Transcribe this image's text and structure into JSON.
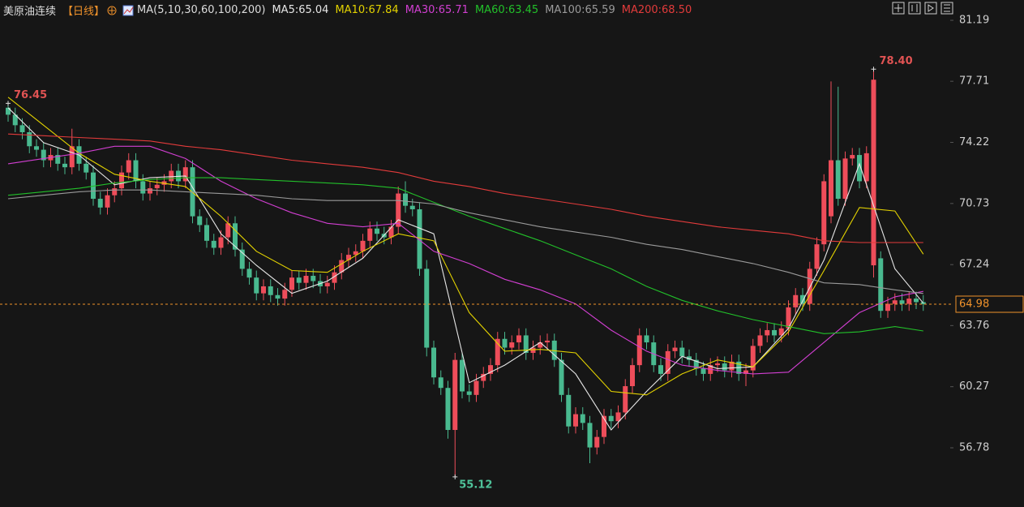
{
  "chart_data": {
    "type": "candlestick",
    "title": "美原油连续",
    "period": "【日线】",
    "indicator": "MA(5,10,30,60,100,200)",
    "up_color": "#ee4d5a",
    "down_color": "#49b98f",
    "ylim": [
      53.4,
      82.35
    ],
    "yticks": [
      56.78,
      60.27,
      63.76,
      67.24,
      70.73,
      74.22,
      77.71,
      81.19
    ],
    "open": [
      76.2,
      75.8,
      75.2,
      74.8,
      74.0,
      73.8,
      73.2,
      73.5,
      73.0,
      72.8,
      74.0,
      73.0,
      72.5,
      71.0,
      70.5,
      71.2,
      71.6,
      72.5,
      73.2,
      72.0,
      71.3,
      71.6,
      71.8,
      72.0,
      72.6,
      72.0,
      72.8,
      70.0,
      69.5,
      68.6,
      68.2,
      68.8,
      69.6,
      68.1,
      67.0,
      66.5,
      65.6,
      66.0,
      65.5,
      65.3,
      65.8,
      66.5,
      66.2,
      66.6,
      66.3,
      66.0,
      66.2,
      66.8,
      67.5,
      67.8,
      68.0,
      68.6,
      69.3,
      69.0,
      68.8,
      69.4,
      71.3,
      70.6,
      70.4,
      67.0,
      62.5,
      60.8,
      60.2,
      57.8,
      61.8,
      60.0,
      59.8,
      60.6,
      61.0,
      61.5,
      63.0,
      62.5,
      62.8,
      63.2,
      62.2,
      62.5,
      62.8,
      62.9,
      61.8,
      59.8,
      58.0,
      58.7,
      58.2,
      56.8,
      57.4,
      58.6,
      58.3,
      58.8,
      60.3,
      61.5,
      63.2,
      62.8,
      61.5,
      61.0,
      62.3,
      62.5,
      62.0,
      61.8,
      61.3,
      61.0,
      61.5,
      61.6,
      61.2,
      61.7,
      61.0,
      61.2,
      62.6,
      63.2,
      63.5,
      63.2,
      63.6,
      64.8,
      65.5,
      65.0,
      67.0,
      68.4,
      70.0,
      73.2,
      71.0,
      73.3,
      73.5,
      72.0,
      67.2,
      67.6,
      64.6,
      65.0,
      65.2,
      65.0,
      65.3,
      65.1
    ],
    "high": [
      76.45,
      76.2,
      75.6,
      75.2,
      74.4,
      74.2,
      73.9,
      73.9,
      73.4,
      75.0,
      74.4,
      73.4,
      72.9,
      71.4,
      71.6,
      72.0,
      72.9,
      73.6,
      73.6,
      72.4,
      72.0,
      72.2,
      72.4,
      73.0,
      73.0,
      73.2,
      73.2,
      70.4,
      69.9,
      69.0,
      69.2,
      70.0,
      70.0,
      68.5,
      67.4,
      66.9,
      66.4,
      66.4,
      65.9,
      66.2,
      66.9,
      66.9,
      67.0,
      67.0,
      66.7,
      66.6,
      67.2,
      67.9,
      68.2,
      68.4,
      69.0,
      69.7,
      69.7,
      69.4,
      69.8,
      71.7,
      72.0,
      71.0,
      70.8,
      67.5,
      62.9,
      61.2,
      60.6,
      62.2,
      62.2,
      60.4,
      61.0,
      61.4,
      61.9,
      63.4,
      63.4,
      63.2,
      63.6,
      63.6,
      62.9,
      63.2,
      63.3,
      63.3,
      62.2,
      60.2,
      59.1,
      59.1,
      58.6,
      57.8,
      59.0,
      59.0,
      59.2,
      60.7,
      61.9,
      63.6,
      63.6,
      63.2,
      61.9,
      62.7,
      62.9,
      62.9,
      62.4,
      62.2,
      61.7,
      61.9,
      62.0,
      62.0,
      62.1,
      62.1,
      61.6,
      63.0,
      63.6,
      63.9,
      63.9,
      64.0,
      65.2,
      65.9,
      65.9,
      67.4,
      68.8,
      72.4,
      77.7,
      77.4,
      73.7,
      73.9,
      73.9,
      74.0,
      78.4,
      68.0,
      65.4,
      65.6,
      65.6,
      65.7,
      65.7,
      65.5
    ],
    "low": [
      75.4,
      74.8,
      74.4,
      73.6,
      73.4,
      72.8,
      72.8,
      72.6,
      72.4,
      72.4,
      72.6,
      72.1,
      70.6,
      70.1,
      70.1,
      70.8,
      71.2,
      72.1,
      71.6,
      70.9,
      70.9,
      71.2,
      71.4,
      71.6,
      71.6,
      71.6,
      69.6,
      69.1,
      68.2,
      67.8,
      67.8,
      68.4,
      67.7,
      66.6,
      66.1,
      65.2,
      65.2,
      65.1,
      64.9,
      64.9,
      65.4,
      65.8,
      65.8,
      65.9,
      65.6,
      65.6,
      65.8,
      66.4,
      67.1,
      67.4,
      67.6,
      68.2,
      68.6,
      68.4,
      68.4,
      69.0,
      70.2,
      70.0,
      66.6,
      62.0,
      60.4,
      59.8,
      57.3,
      55.12,
      59.6,
      59.4,
      59.4,
      60.2,
      60.6,
      61.1,
      62.1,
      62.1,
      62.4,
      61.8,
      61.8,
      62.1,
      62.4,
      61.4,
      59.4,
      57.6,
      57.6,
      57.8,
      55.9,
      56.4,
      57.0,
      57.9,
      57.9,
      58.4,
      59.9,
      61.1,
      62.4,
      61.1,
      60.6,
      60.6,
      61.9,
      61.6,
      61.4,
      60.9,
      60.6,
      60.6,
      61.1,
      60.8,
      60.8,
      60.6,
      60.3,
      60.8,
      62.2,
      62.8,
      62.8,
      62.8,
      63.2,
      64.4,
      64.6,
      64.6,
      66.6,
      68.0,
      69.6,
      70.6,
      70.6,
      72.9,
      71.6,
      71.6,
      66.5,
      64.2,
      64.2,
      64.6,
      64.6,
      64.6,
      64.7,
      64.6
    ],
    "close": [
      75.8,
      75.2,
      74.8,
      74.0,
      73.8,
      73.2,
      73.5,
      73.0,
      72.8,
      74.0,
      73.0,
      72.5,
      71.0,
      70.5,
      71.2,
      71.6,
      72.5,
      73.2,
      72.0,
      71.3,
      71.6,
      71.8,
      72.0,
      72.6,
      72.0,
      72.8,
      70.0,
      69.5,
      68.6,
      68.2,
      68.8,
      69.6,
      68.1,
      67.0,
      66.5,
      65.6,
      66.0,
      65.5,
      65.3,
      65.8,
      66.5,
      66.2,
      66.6,
      66.3,
      66.0,
      66.2,
      66.8,
      67.5,
      67.8,
      68.0,
      68.6,
      69.3,
      69.0,
      68.8,
      69.4,
      71.3,
      70.6,
      70.4,
      67.0,
      62.5,
      60.8,
      60.2,
      57.8,
      61.8,
      60.0,
      59.8,
      60.6,
      61.0,
      61.5,
      63.0,
      62.5,
      62.8,
      63.2,
      62.2,
      62.5,
      62.8,
      62.9,
      61.8,
      59.8,
      58.0,
      58.7,
      58.2,
      56.8,
      57.4,
      58.6,
      58.3,
      58.8,
      60.3,
      61.5,
      63.2,
      62.8,
      61.5,
      61.0,
      62.3,
      62.5,
      62.0,
      61.8,
      61.3,
      61.0,
      61.5,
      61.6,
      61.2,
      61.7,
      61.0,
      61.2,
      62.6,
      63.2,
      63.5,
      63.2,
      63.6,
      64.8,
      65.5,
      65.0,
      67.0,
      68.4,
      72.0,
      73.2,
      71.0,
      73.3,
      73.5,
      72.0,
      73.6,
      77.8,
      64.6,
      65.0,
      65.2,
      65.0,
      65.3,
      65.1,
      64.98
    ],
    "ma_x": [
      0,
      5,
      10,
      15,
      20,
      25,
      30,
      35,
      40,
      45,
      50,
      55,
      60,
      65,
      70,
      75,
      80,
      85,
      90,
      95,
      100,
      105,
      110,
      115,
      120,
      125,
      129
    ],
    "series": [
      {
        "name": "MA5:65.04",
        "color": "#e6e6e6",
        "values": [
          76.2,
          74.2,
          73.5,
          71.8,
          72.2,
          72.3,
          69.0,
          67.2,
          65.6,
          66.3,
          67.6,
          69.8,
          69.0,
          60.5,
          61.5,
          62.8,
          61.0,
          57.8,
          60.0,
          62.0,
          61.3,
          61.4,
          63.6,
          67.5,
          73.0,
          67.0,
          65.04
        ]
      },
      {
        "name": "MA10:67.84",
        "color": "#e3d200",
        "values": [
          76.8,
          75.2,
          73.6,
          72.4,
          72.0,
          71.7,
          70.0,
          68.0,
          66.9,
          66.8,
          68.0,
          69.0,
          68.6,
          64.5,
          62.3,
          62.4,
          62.2,
          60.0,
          59.8,
          61.0,
          61.8,
          61.4,
          63.4,
          66.9,
          70.5,
          70.3,
          67.84
        ]
      },
      {
        "name": "MA30:65.71",
        "color": "#d23fd2",
        "values": [
          73.0,
          73.3,
          73.6,
          74.0,
          74.0,
          73.3,
          72.0,
          71.0,
          70.2,
          69.6,
          69.4,
          69.6,
          68.0,
          67.3,
          66.4,
          65.8,
          65.0,
          63.5,
          62.3,
          61.5,
          61.2,
          61.0,
          61.1,
          62.8,
          64.5,
          65.4,
          65.71
        ]
      },
      {
        "name": "MA60:63.45",
        "color": "#22c02a",
        "values": [
          71.2,
          71.4,
          71.6,
          71.9,
          72.1,
          72.2,
          72.2,
          72.1,
          72.0,
          71.9,
          71.8,
          71.6,
          70.8,
          70.0,
          69.3,
          68.6,
          67.8,
          67.0,
          66.0,
          65.2,
          64.6,
          64.1,
          63.7,
          63.3,
          63.4,
          63.7,
          63.45
        ]
      },
      {
        "name": "MA100:65.59",
        "color": "#9a9a9a",
        "values": [
          71.0,
          71.2,
          71.4,
          71.5,
          71.5,
          71.4,
          71.3,
          71.2,
          71.0,
          70.9,
          70.9,
          70.9,
          70.7,
          70.2,
          69.8,
          69.4,
          69.1,
          68.8,
          68.4,
          68.1,
          67.7,
          67.3,
          66.8,
          66.2,
          66.1,
          65.8,
          65.59
        ]
      },
      {
        "name": "MA200:68.50",
        "color": "#e23b3b",
        "values": [
          74.7,
          74.6,
          74.5,
          74.4,
          74.3,
          74.0,
          73.8,
          73.5,
          73.2,
          73.0,
          72.8,
          72.5,
          72.0,
          71.7,
          71.3,
          71.0,
          70.7,
          70.4,
          70.0,
          69.7,
          69.4,
          69.2,
          69.0,
          68.6,
          68.5,
          68.5,
          68.5
        ]
      }
    ],
    "marked_highs": [
      76.45,
      {
        "value": 78.4,
        "label": "78.40"
      }
    ],
    "marked_lows": [
      55.12
    ],
    "last_price": 64.98,
    "last_price_color": "#f0922b"
  }
}
